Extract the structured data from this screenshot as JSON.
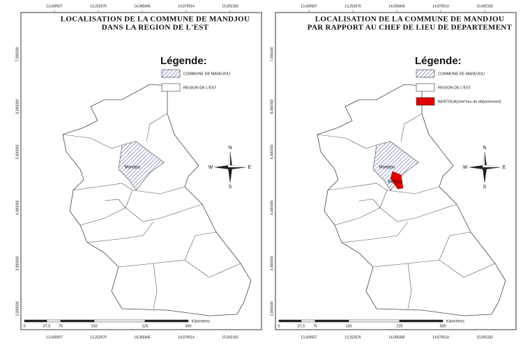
{
  "panels": [
    {
      "title": [
        "LOCALISATION DE LA COMMUNE DE MANDJOU",
        "DANS LA REGION DE L'EST"
      ],
      "legend_title": "Légende:",
      "legend": [
        "COMMUNE DE MANDJOU",
        "REGION DE L'EST"
      ],
      "map_labels": [
        "Mandjou"
      ]
    },
    {
      "title": [
        "LOCALISATION DE LA COMMUNE DE MANDJOU",
        "PAR RAPPORT AU CHEF DE LIEU DE DEPARTEMENT"
      ],
      "legend_title": "Légende:",
      "legend": [
        "COMMUNE DE MANDJOU",
        "REGION DE L'EST",
        "BERTOUA(chef lieu de département)"
      ],
      "map_labels": [
        "Mandjou",
        "Bertoua"
      ]
    }
  ],
  "top_coords": [
    "13,439507",
    "13,252676",
    "14,065845",
    "14,879014",
    "15,692183"
  ],
  "bottom_coords": [
    "13,439507",
    "13,252676",
    "14,065845",
    "14,879014",
    "15,692183"
  ],
  "side_coords": [
    "7,000000",
    "6,000000",
    "5,000000",
    "4,000000",
    "3,000000",
    "2,000000"
  ],
  "scale": {
    "ticks": [
      "0",
      "37,5",
      "75",
      "150",
      "225",
      "300"
    ],
    "unit": "Kilomètres"
  },
  "compass": {
    "n": "N",
    "s": "S",
    "e": "E",
    "w": "W"
  }
}
